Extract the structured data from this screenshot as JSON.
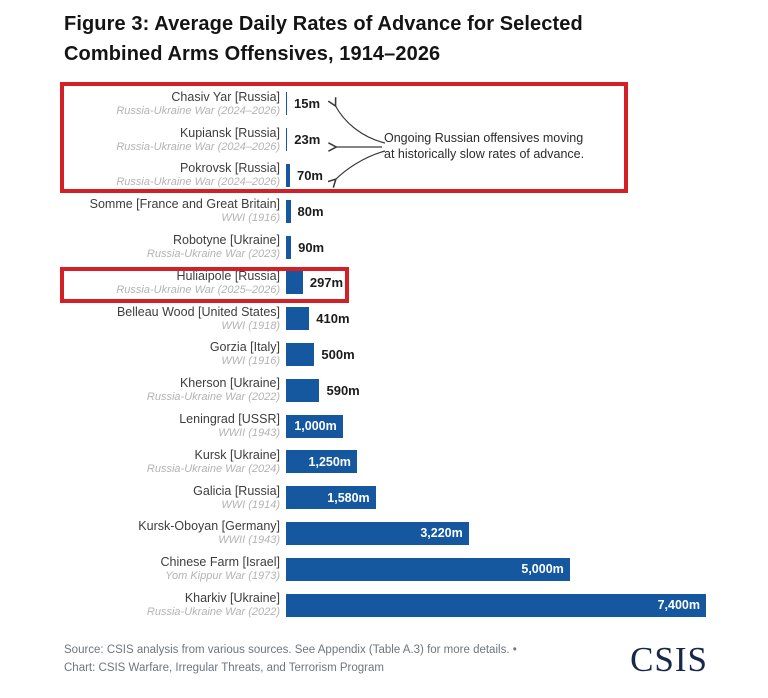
{
  "figure": {
    "title_line1": "Figure 3: Average Daily Rates of Advance for Selected",
    "title_line2": "Combined Arms Offensives, 1914–2026"
  },
  "annotation": {
    "line1": "Ongoing Russian offensives moving",
    "line2": "at historically slow rates of advance."
  },
  "footer": {
    "source_line": "Source: CSIS analysis from various sources. See Appendix (Table A.3) for more details. •",
    "chart_line": "Chart: CSIS Warfare, Irregular Threats, and Terrorism Program",
    "logo_text": "CSIS"
  },
  "colors": {
    "bar_blue": "#1558a0",
    "highlight_red": "#d32027",
    "value_text_inside": "#ffffff",
    "value_text_outside": "#1c1c1c",
    "category_label_gray": "#3d3d3d",
    "war_label_gray": "#b3b3b3",
    "logo_navy": "#17294a",
    "footer_gray": "#6e767e"
  },
  "chart_data": {
    "type": "bar",
    "orientation": "horizontal",
    "title": "Figure 3: Average Daily Rates of Advance for Selected Combined Arms Offensives, 1914–2026",
    "unit": "meters per day",
    "value_axis_range": [
      0,
      7400
    ],
    "grid": false,
    "legend": false,
    "bars": [
      {
        "offensive": "Chasiv Yar [Russia]",
        "war": "Russia-Ukraine War (2024–2026)",
        "value_m": 15,
        "value_label": "15m",
        "label_inside_bar": false
      },
      {
        "offensive": "Kupiansk [Russia]",
        "war": "Russia-Ukraine War (2024–2026)",
        "value_m": 23,
        "value_label": "23m",
        "label_inside_bar": false
      },
      {
        "offensive": "Pokrovsk [Russia]",
        "war": "Russia-Ukraine War (2024–2026)",
        "value_m": 70,
        "value_label": "70m",
        "label_inside_bar": false
      },
      {
        "offensive": "Somme [France and Great Britain]",
        "war": "WWI (1916)",
        "value_m": 80,
        "value_label": "80m",
        "label_inside_bar": false
      },
      {
        "offensive": "Robotyne [Ukraine]",
        "war": "Russia-Ukraine War (2023)",
        "value_m": 90,
        "value_label": "90m",
        "label_inside_bar": false
      },
      {
        "offensive": "Huliaipole [Russia]",
        "war": "Russia-Ukraine War (2025–2026)",
        "value_m": 297,
        "value_label": "297m",
        "label_inside_bar": false
      },
      {
        "offensive": "Belleau Wood [United States]",
        "war": "WWI (1918)",
        "value_m": 410,
        "value_label": "410m",
        "label_inside_bar": false
      },
      {
        "offensive": "Gorzia [Italy]",
        "war": "WWI (1916)",
        "value_m": 500,
        "value_label": "500m",
        "label_inside_bar": false
      },
      {
        "offensive": "Kherson [Ukraine]",
        "war": "Russia-Ukraine War (2022)",
        "value_m": 590,
        "value_label": "590m",
        "label_inside_bar": false
      },
      {
        "offensive": "Leningrad [USSR]",
        "war": "WWII (1943)",
        "value_m": 1000,
        "value_label": "1,000m",
        "label_inside_bar": true
      },
      {
        "offensive": "Kursk [Ukraine]",
        "war": "Russia-Ukraine War (2024)",
        "value_m": 1250,
        "value_label": "1,250m",
        "label_inside_bar": true
      },
      {
        "offensive": "Galicia [Russia]",
        "war": "WWI (1914)",
        "value_m": 1580,
        "value_label": "1,580m",
        "label_inside_bar": true
      },
      {
        "offensive": "Kursk-Oboyan [Germany]",
        "war": "WWII (1943)",
        "value_m": 3220,
        "value_label": "3,220m",
        "label_inside_bar": true
      },
      {
        "offensive": "Chinese Farm [Israel]",
        "war": "Yom Kippur War (1973)",
        "value_m": 5000,
        "value_label": "5,000m",
        "label_inside_bar": true
      },
      {
        "offensive": "Kharkiv [Ukraine]",
        "war": "Russia-Ukraine War (2022)",
        "value_m": 7400,
        "value_label": "7,400m",
        "label_inside_bar": true
      }
    ],
    "annotations": [
      {
        "type": "callout-text-with-arrows",
        "text": "Ongoing Russian offensives moving at historically slow rates of advance.",
        "points_to": [
          "Chasiv Yar [Russia]",
          "Kupiansk [Russia]",
          "Pokrovsk [Russia]"
        ]
      },
      {
        "type": "red-highlight-box",
        "around": [
          "Chasiv Yar [Russia]",
          "Kupiansk [Russia]",
          "Pokrovsk [Russia]"
        ]
      },
      {
        "type": "red-highlight-box",
        "around": [
          "Huliaipole [Russia]"
        ]
      }
    ]
  }
}
